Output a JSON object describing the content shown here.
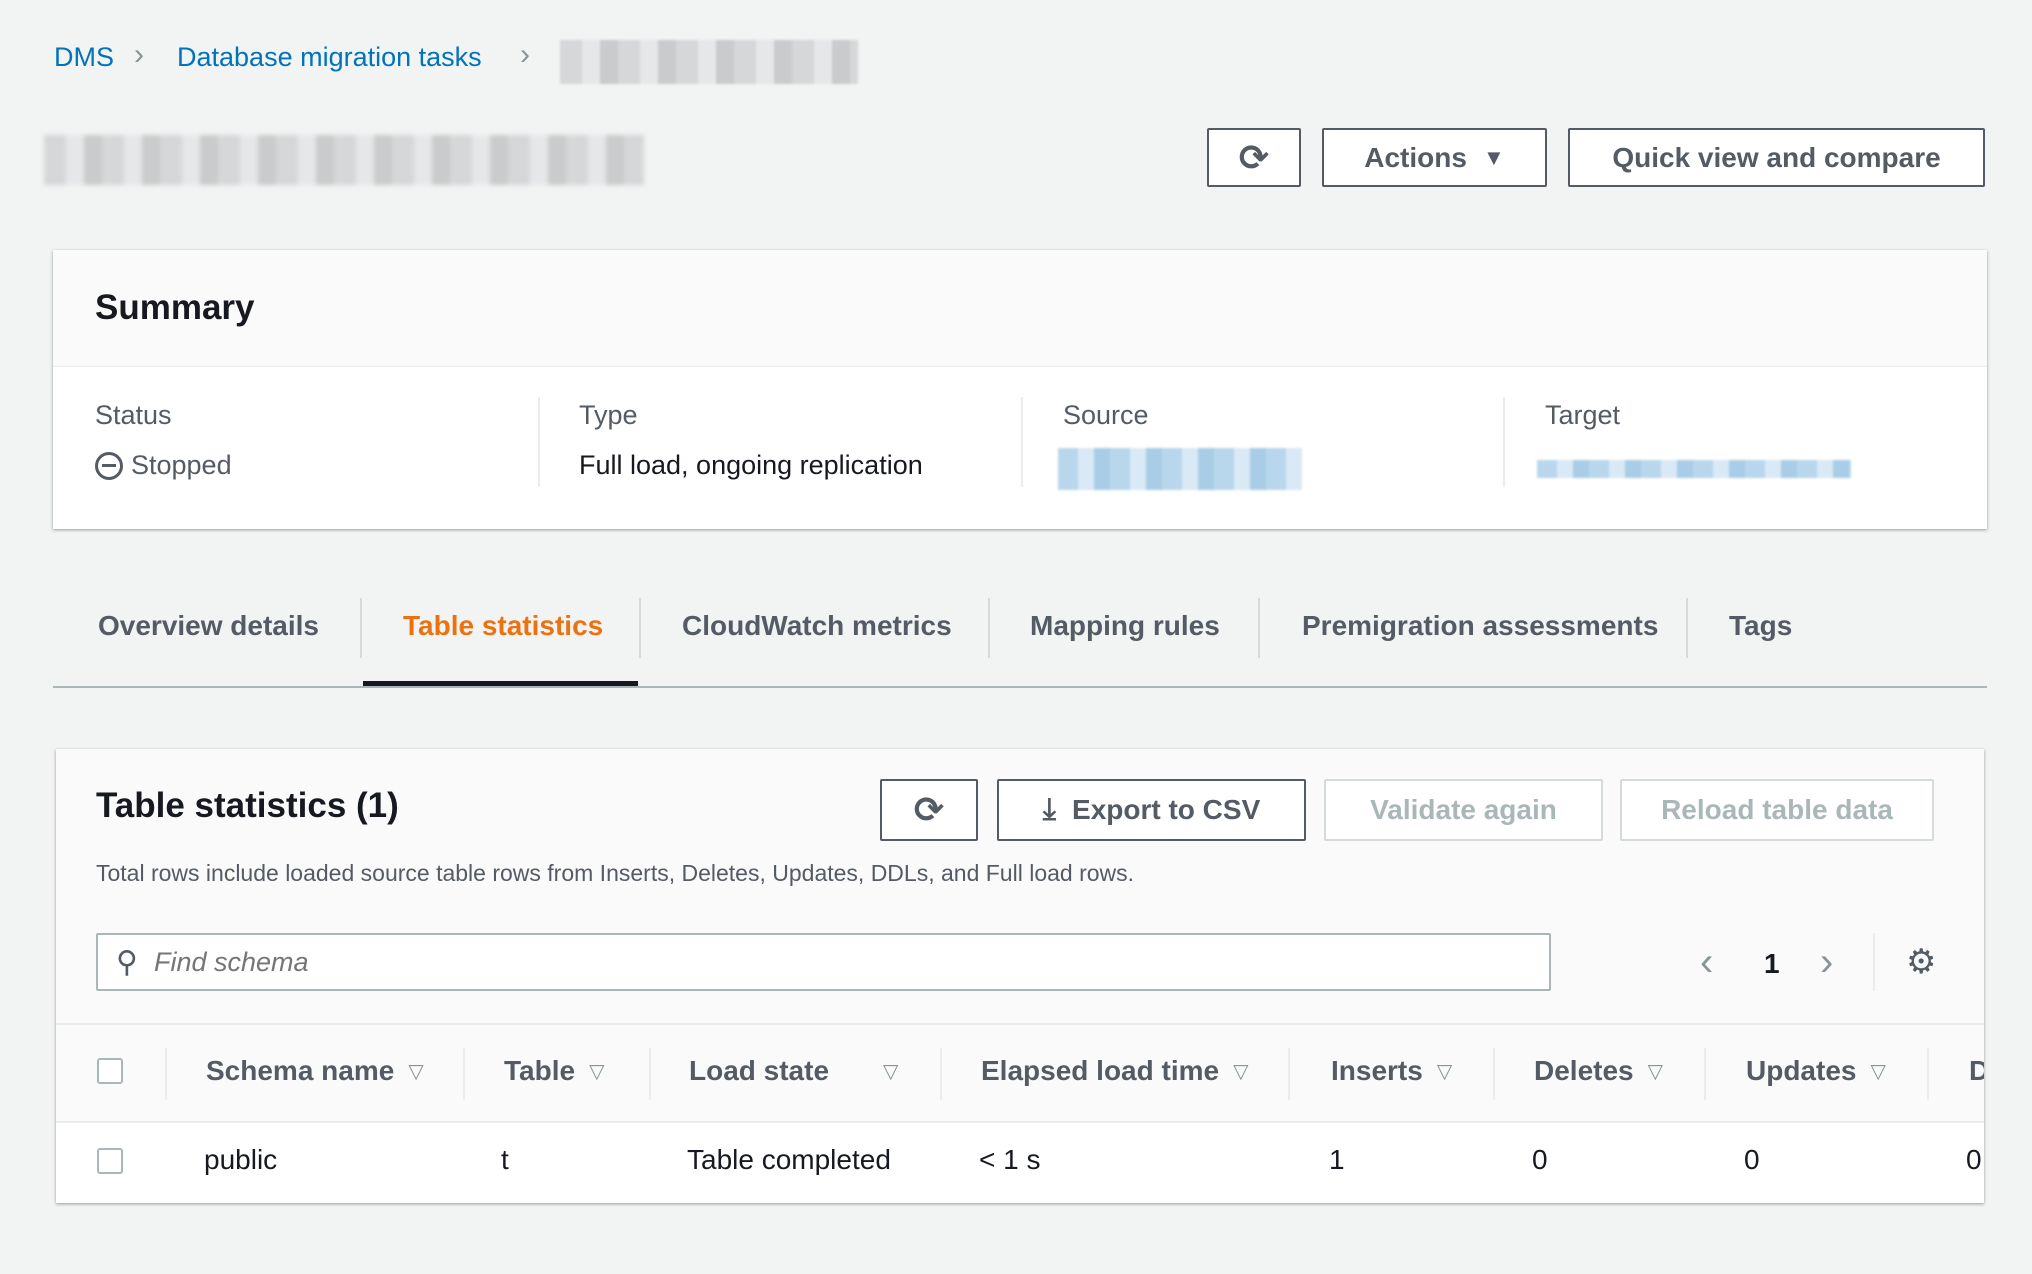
{
  "breadcrumb": {
    "items": [
      "DMS",
      "Database migration tasks"
    ]
  },
  "header": {
    "actions_label": "Actions",
    "quick_view_label": "Quick view and compare"
  },
  "summary": {
    "title": "Summary",
    "status_label": "Status",
    "status_value": "Stopped",
    "type_label": "Type",
    "type_value": "Full load, ongoing replication",
    "source_label": "Source",
    "target_label": "Target"
  },
  "tabs": [
    {
      "label": "Overview details",
      "active": false
    },
    {
      "label": "Table statistics",
      "active": true
    },
    {
      "label": "CloudWatch metrics",
      "active": false
    },
    {
      "label": "Mapping rules",
      "active": false
    },
    {
      "label": "Premigration assessments",
      "active": false
    },
    {
      "label": "Tags",
      "active": false
    }
  ],
  "table_stats": {
    "title": "Table statistics (1)",
    "export_label": "Export to CSV",
    "validate_label": "Validate again",
    "reload_label": "Reload table data",
    "description": "Total rows include loaded source table rows from Inserts, Deletes, Updates, DDLs, and Full load rows.",
    "search_placeholder": "Find schema",
    "page": "1",
    "columns": [
      "Schema name",
      "Table",
      "Load state",
      "Elapsed load time",
      "Inserts",
      "Deletes",
      "Updates",
      "D"
    ],
    "rows": [
      [
        "public",
        "t",
        "Table completed",
        "< 1 s",
        "1",
        "0",
        "0",
        "0"
      ]
    ]
  },
  "colors": {
    "accent": "#ec7211",
    "link": "#0073bb"
  }
}
